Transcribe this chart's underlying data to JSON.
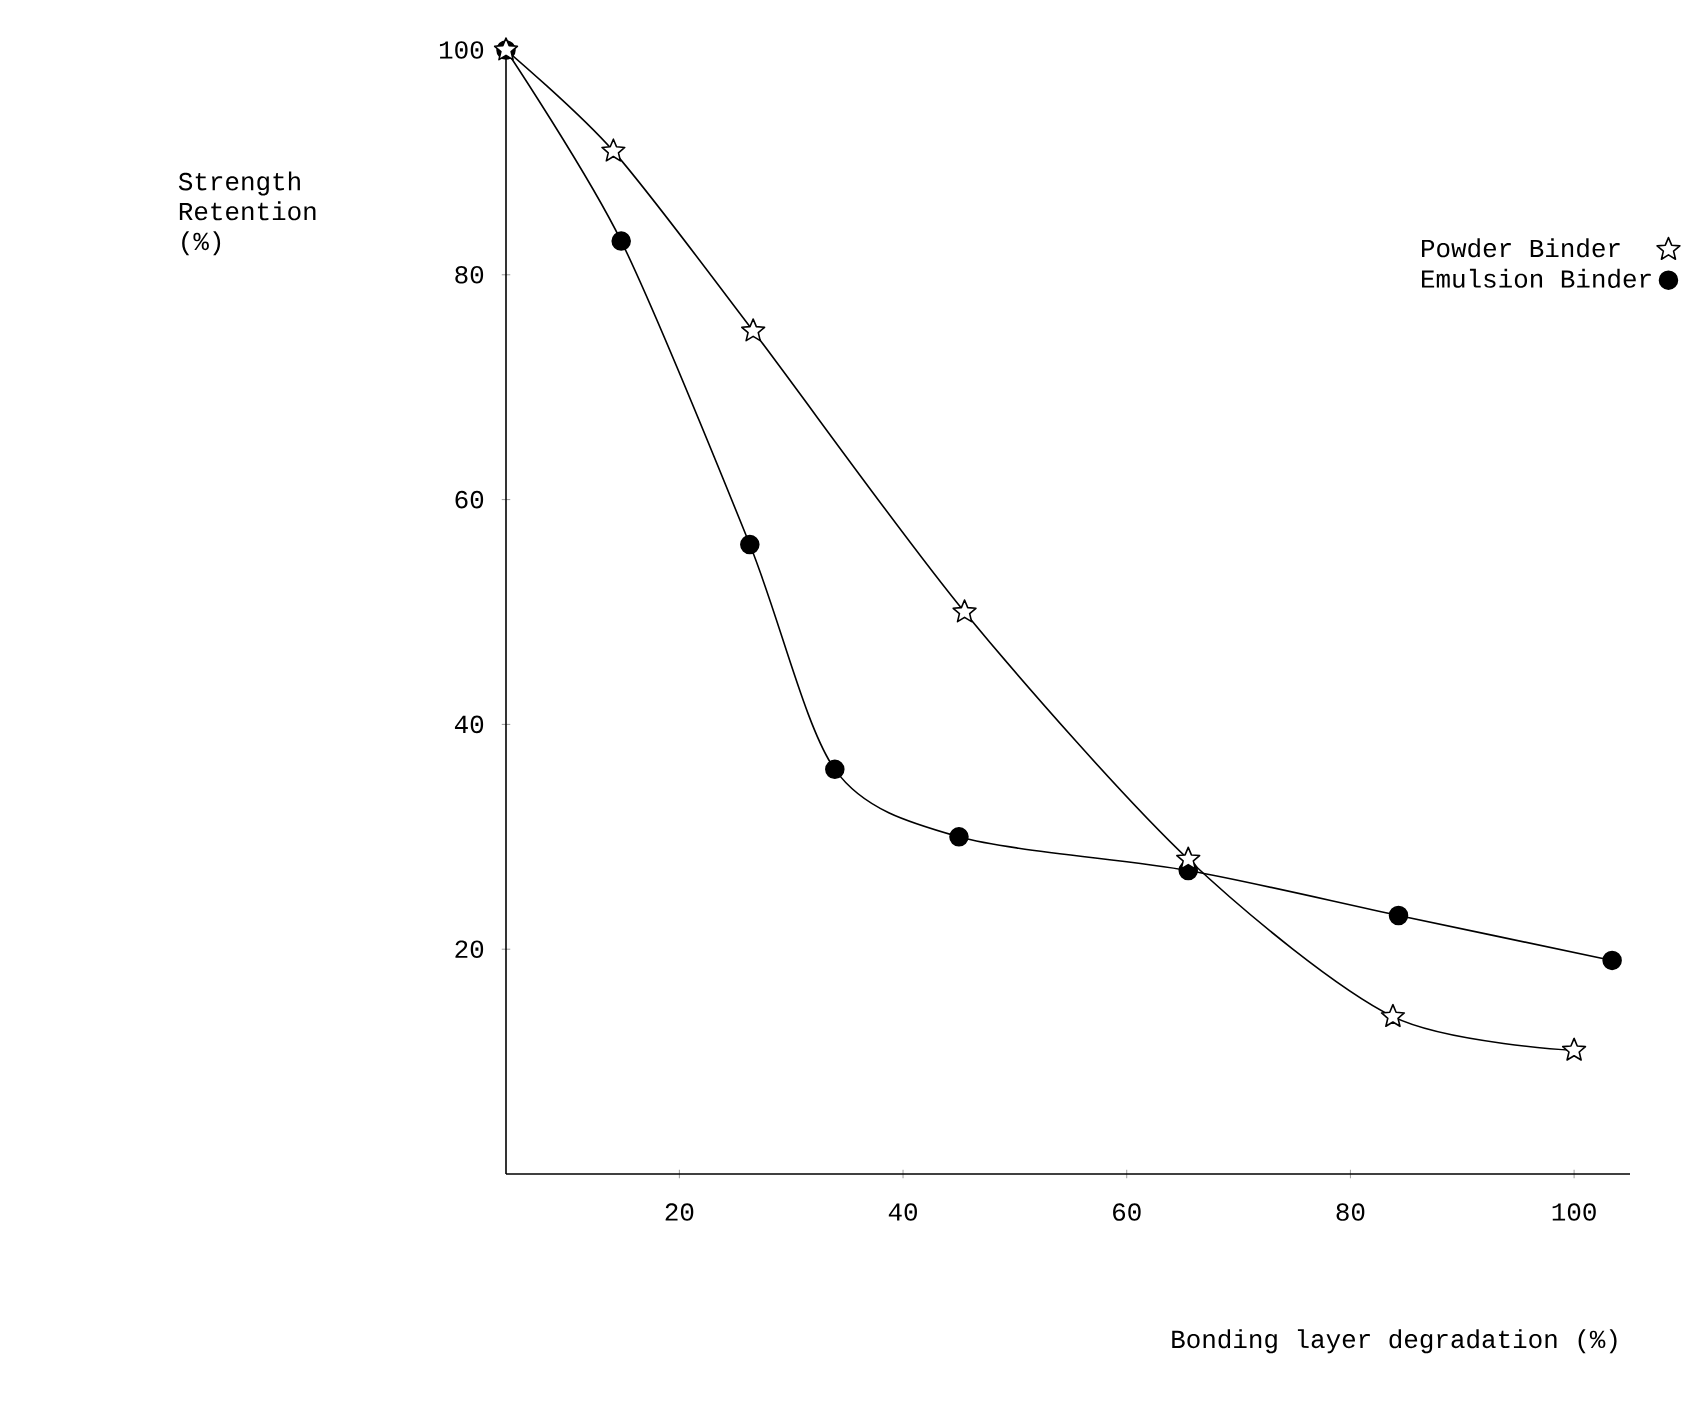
{
  "chart_data": {
    "type": "line",
    "xlabel": "Bonding layer degradation (%)",
    "ylabel": "Strength Retention (%)",
    "xlim": [
      4.5,
      105
    ],
    "ylim": [
      0,
      100
    ],
    "xticks": [
      20,
      40,
      60,
      80,
      100
    ],
    "yticks": [
      20,
      40,
      60,
      80,
      100
    ],
    "grid": false,
    "legend": "top right",
    "series": [
      {
        "name": "Emulsion Binder",
        "color": "#000000",
        "marker": "circle",
        "x": [
          4.5,
          14.8,
          26.3,
          33.9,
          45.0,
          65.5,
          84.3,
          103.4
        ],
        "values": [
          100,
          83,
          56,
          36,
          30,
          27,
          23,
          19
        ]
      },
      {
        "name": "Powder Binder",
        "color": "#000000",
        "marker": "star",
        "x": [
          4.5,
          14.1,
          26.6,
          45.5,
          65.5,
          83.8,
          100.0
        ],
        "values": [
          100,
          91,
          75,
          50,
          28,
          14,
          11
        ]
      }
    ]
  }
}
